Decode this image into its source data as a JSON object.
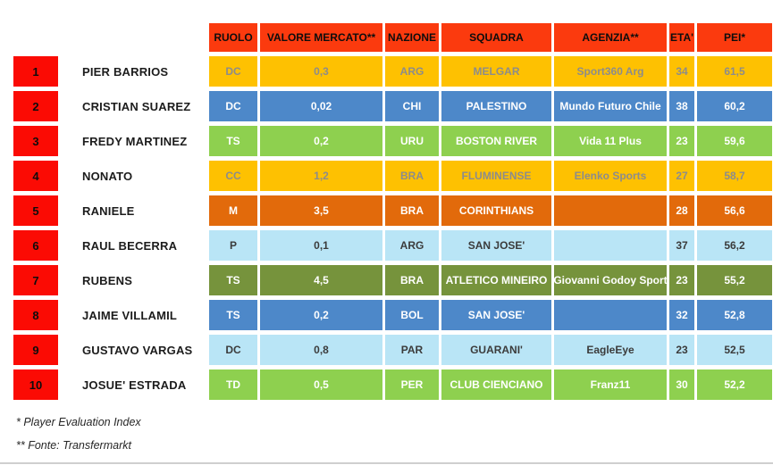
{
  "colors": {
    "header_bg": "#fb3a0e",
    "rank_bg": "#fb0b04",
    "gold": "#fec101",
    "gold_text": "#8c8c8c",
    "blue": "#4d88c9",
    "green": "#8ed04f",
    "dark_orange": "#e26a0b",
    "light_blue": "#b9e5f6",
    "dark_text": "#3b3b3b",
    "olive": "#76933c",
    "white_text": "#ffffff",
    "name_text": "#1c1c1c",
    "divider": "#cfcfcf"
  },
  "table": {
    "columns": [
      "RUOLO",
      "VALORE MERCATO**",
      "NAZIONE",
      "SQUADRA",
      "AGENZIA**",
      "ETA'",
      "PEI*"
    ],
    "rows": [
      {
        "rank": "1",
        "player": "PIER BARRIOS",
        "ruolo": "DC",
        "valore": "0,3",
        "nazione": "ARG",
        "squadra": "MELGAR",
        "agenzia": "Sport360 Arg",
        "eta": "34",
        "pei": "61,5",
        "theme": "gold"
      },
      {
        "rank": "2",
        "player": "CRISTIAN SUAREZ",
        "ruolo": "DC",
        "valore": "0,02",
        "nazione": "CHI",
        "squadra": "PALESTINO",
        "agenzia": "Mundo Futuro Chile",
        "eta": "38",
        "pei": "60,2",
        "theme": "blue"
      },
      {
        "rank": "3",
        "player": "FREDY MARTINEZ",
        "ruolo": "TS",
        "valore": "0,2",
        "nazione": "URU",
        "squadra": "BOSTON RIVER",
        "agenzia": "Vida 11 Plus",
        "eta": "23",
        "pei": "59,6",
        "theme": "green"
      },
      {
        "rank": "4",
        "player": "NONATO",
        "ruolo": "CC",
        "valore": "1,2",
        "nazione": "BRA",
        "squadra": "FLUMINENSE",
        "agenzia": "Elenko Sports",
        "eta": "27",
        "pei": "58,7",
        "theme": "gold"
      },
      {
        "rank": "5",
        "player": "RANIELE",
        "ruolo": "M",
        "valore": "3,5",
        "nazione": "BRA",
        "squadra": "CORINTHIANS",
        "agenzia": "",
        "eta": "28",
        "pei": "56,6",
        "theme": "darkorange"
      },
      {
        "rank": "6",
        "player": "RAUL BECERRA",
        "ruolo": "P",
        "valore": "0,1",
        "nazione": "ARG",
        "squadra": "SAN JOSE'",
        "agenzia": "",
        "eta": "37",
        "pei": "56,2",
        "theme": "lightblue"
      },
      {
        "rank": "7",
        "player": "RUBENS",
        "ruolo": "TS",
        "valore": "4,5",
        "nazione": "BRA",
        "squadra": "ATLETICO MINEIRO",
        "agenzia": "Giovanni Godoy Sport",
        "eta": "23",
        "pei": "55,2",
        "theme": "olive"
      },
      {
        "rank": "8",
        "player": "JAIME VILLAMIL",
        "ruolo": "TS",
        "valore": "0,2",
        "nazione": "BOL",
        "squadra": "SAN JOSE'",
        "agenzia": "",
        "eta": "32",
        "pei": "52,8",
        "theme": "blue"
      },
      {
        "rank": "9",
        "player": "GUSTAVO VARGAS",
        "ruolo": "DC",
        "valore": "0,8",
        "nazione": "PAR",
        "squadra": "GUARANI'",
        "agenzia": "EagleEye",
        "eta": "23",
        "pei": "52,5",
        "theme": "lightblue"
      },
      {
        "rank": "10",
        "player": "JOSUE' ESTRADA",
        "ruolo": "TD",
        "valore": "0,5",
        "nazione": "PER",
        "squadra": "CLUB CIENCIANO",
        "agenzia": "Franz11",
        "eta": "30",
        "pei": "52,2",
        "theme": "green"
      }
    ]
  },
  "footnotes": {
    "pei": "* Player Evaluation Index",
    "fonte": "** Fonte: Transfermarkt"
  }
}
